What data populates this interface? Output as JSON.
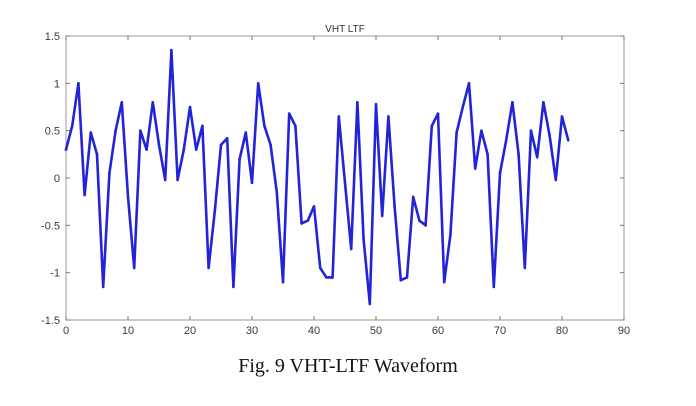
{
  "caption": "Fig. 9 VHT-LTF Waveform",
  "chart_data": {
    "type": "line",
    "title": "VHT LTF",
    "xlabel": "",
    "ylabel": "",
    "xlim": [
      0,
      90
    ],
    "ylim": [
      -1.5,
      1.5
    ],
    "xticks": [
      0,
      10,
      20,
      30,
      40,
      50,
      60,
      70,
      80,
      90
    ],
    "yticks": [
      -1.5,
      -1,
      -0.5,
      0,
      0.5,
      1,
      1.5
    ],
    "xtick_labels": [
      "0",
      "10",
      "20",
      "30",
      "40",
      "50",
      "60",
      "70",
      "80",
      "90"
    ],
    "ytick_labels": [
      "-1.5",
      "-1",
      "-0.5",
      "0",
      "0.5",
      "1",
      "1.5"
    ],
    "grid": false,
    "series": [
      {
        "color": "#2323d8",
        "x": [
          0,
          1,
          2,
          3,
          4,
          5,
          6,
          7,
          8,
          9,
          10,
          11,
          12,
          13,
          14,
          15,
          16,
          17,
          18,
          19,
          20,
          21,
          22,
          23,
          24,
          25,
          26,
          27,
          28,
          29,
          30,
          31,
          32,
          33,
          34,
          35,
          36,
          37,
          38,
          39,
          40,
          41,
          42,
          43,
          44,
          45,
          46,
          47,
          48,
          49,
          50,
          51,
          52,
          53,
          54,
          55,
          56,
          57,
          58,
          59,
          60,
          61,
          62,
          63,
          64,
          65,
          66,
          67,
          68,
          69,
          70,
          71,
          72,
          73,
          74,
          75,
          76,
          77,
          78,
          79,
          80,
          81
        ],
        "y": [
          0.3,
          0.55,
          1.0,
          -0.18,
          0.48,
          0.25,
          -1.15,
          0.05,
          0.5,
          0.8,
          -0.2,
          -0.95,
          0.5,
          0.3,
          0.8,
          0.35,
          -0.02,
          1.35,
          -0.02,
          0.3,
          0.75,
          0.3,
          0.55,
          -0.95,
          -0.35,
          0.35,
          0.42,
          -1.15,
          0.2,
          0.48,
          -0.05,
          1.0,
          0.55,
          0.35,
          -0.15,
          -1.1,
          0.68,
          0.55,
          -0.48,
          -0.45,
          -0.3,
          -0.95,
          -1.05,
          -1.05,
          0.65,
          -0.05,
          -0.75,
          0.8,
          -0.65,
          -1.33,
          0.78,
          -0.4,
          0.65,
          -0.3,
          -1.08,
          -1.05,
          -0.2,
          -0.45,
          -0.5,
          0.55,
          0.68,
          -1.1,
          -0.6,
          0.48,
          0.75,
          1.0,
          0.1,
          0.5,
          0.25,
          -1.15,
          0.05,
          0.4,
          0.8,
          0.25,
          -0.95,
          0.5,
          0.22,
          0.8,
          0.45,
          -0.02,
          0.65,
          0.4
        ]
      }
    ]
  }
}
